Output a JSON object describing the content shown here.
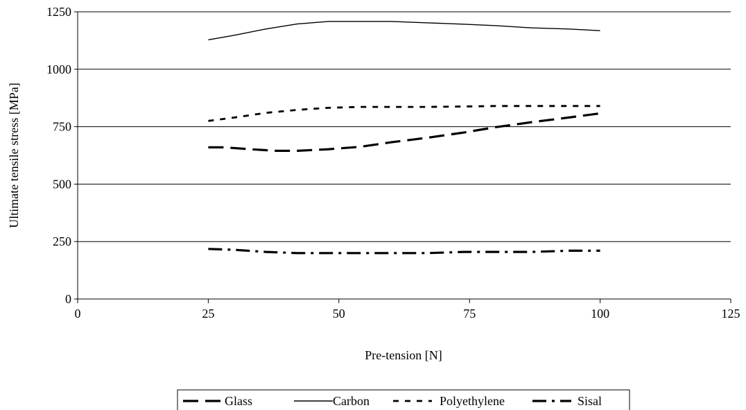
{
  "chart_data": {
    "type": "line",
    "title": "",
    "xlabel": "Pre-tension [N]",
    "ylabel": "Ultimate tensile stress [MPa]",
    "xlim": [
      0,
      125
    ],
    "ylim": [
      0,
      1250
    ],
    "xticks": [
      "0",
      "25",
      "50",
      "75",
      "100",
      "125"
    ],
    "yticks": [
      "0",
      "250",
      "500",
      "750",
      "1000",
      "1250"
    ],
    "grid": "horizontal",
    "legend": "bottom",
    "series": [
      {
        "name": "Glass",
        "style": "long-dash",
        "color": "#000000",
        "x": [
          25,
          28,
          33,
          38,
          42,
          48,
          54,
          60,
          67,
          74,
          80,
          87,
          94,
          100
        ],
        "y": [
          660,
          660,
          652,
          645,
          645,
          652,
          662,
          682,
          702,
          725,
          748,
          770,
          790,
          808
        ]
      },
      {
        "name": "Carbon",
        "style": "solid",
        "color": "#000000",
        "x": [
          25,
          30,
          36,
          42,
          48,
          54,
          60,
          67,
          74,
          80,
          87,
          94,
          100
        ],
        "y": [
          1128,
          1148,
          1175,
          1197,
          1208,
          1208,
          1208,
          1202,
          1196,
          1190,
          1180,
          1175,
          1168
        ]
      },
      {
        "name": "Polyethylene",
        "style": "short-dash",
        "color": "#000000",
        "x": [
          25,
          30,
          36,
          42,
          48,
          54,
          60,
          67,
          74,
          80,
          87,
          94,
          100
        ],
        "y": [
          775,
          790,
          810,
          823,
          832,
          836,
          836,
          836,
          838,
          840,
          840,
          840,
          840
        ]
      },
      {
        "name": "Sisal",
        "style": "dash-dot",
        "color": "#000000",
        "x": [
          25,
          30,
          36,
          42,
          48,
          54,
          60,
          67,
          74,
          80,
          87,
          94,
          100
        ],
        "y": [
          218,
          214,
          205,
          200,
          200,
          200,
          200,
          200,
          205,
          205,
          205,
          210,
          210
        ]
      }
    ]
  }
}
